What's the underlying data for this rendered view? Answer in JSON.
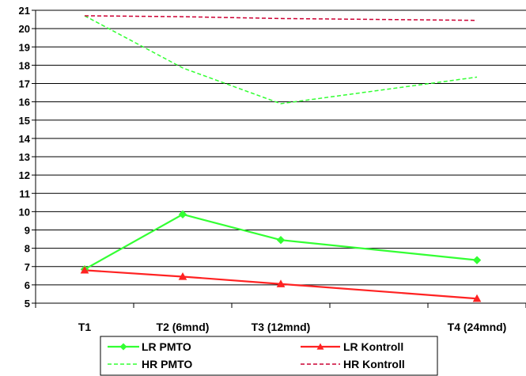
{
  "chart_data": {
    "type": "line",
    "categories": [
      "T1",
      "T2 (6mnd)",
      "T3 (12mnd)",
      "T4 (24mnd)"
    ],
    "x_positions": [
      0.5,
      1.5,
      2.5,
      4.5
    ],
    "x_range": [
      0,
      5
    ],
    "ylim": [
      5,
      21
    ],
    "y_ticks": [
      5,
      6,
      7,
      8,
      9,
      10,
      11,
      12,
      13,
      14,
      15,
      16,
      17,
      18,
      19,
      20,
      21
    ],
    "grid": "horizontal",
    "legend_position": "bottom",
    "series": [
      {
        "name": "LR PMTO",
        "values": [
          6.85,
          9.85,
          8.45,
          7.35
        ],
        "color": "#33ff33",
        "dash": "solid",
        "marker": "diamond"
      },
      {
        "name": "LR Kontroll",
        "values": [
          6.8,
          6.45,
          6.05,
          5.25
        ],
        "color": "#ff2222",
        "dash": "solid",
        "marker": "triangle"
      },
      {
        "name": "HR PMTO",
        "values": [
          20.7,
          17.85,
          15.9,
          17.35
        ],
        "color": "#33ff33",
        "dash": "dashed",
        "marker": "none"
      },
      {
        "name": "HR Kontroll",
        "values": [
          20.7,
          20.65,
          20.55,
          20.45
        ],
        "color": "#cc0033",
        "dash": "dashed",
        "marker": "none"
      }
    ]
  }
}
